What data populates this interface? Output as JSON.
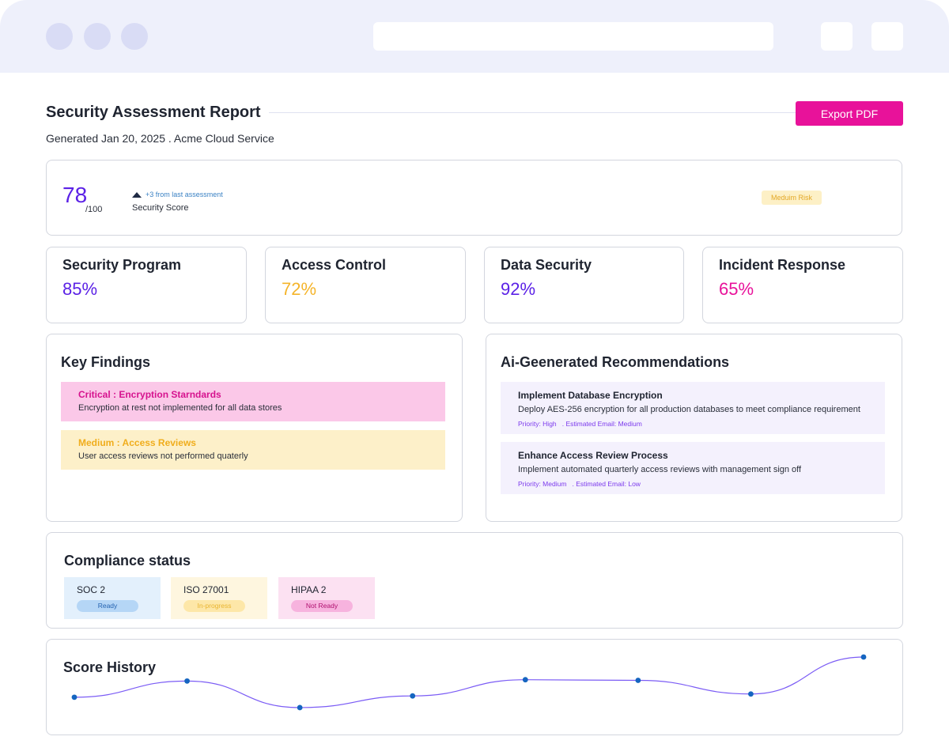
{
  "header": {
    "title": "Security Assessment Report",
    "subtitle": "Generated Jan 20, 2025 . Acme Cloud Service",
    "export_label": "Export PDF"
  },
  "score": {
    "value": "78",
    "max": "/100",
    "trend": "+3 from last assessment",
    "label": "Security Score",
    "risk": "Meduim Risk"
  },
  "metrics": [
    {
      "title": "Security Program",
      "value": "85%"
    },
    {
      "title": "Access Control",
      "value": "72%"
    },
    {
      "title": "Data Security",
      "value": "92%"
    },
    {
      "title": "Incident Response",
      "value": "65%"
    }
  ],
  "findings": {
    "title": "Key Findings",
    "items": [
      {
        "title": "Critical : Encryption Starndards",
        "desc": "Encryption at rest not implemented for all data stores"
      },
      {
        "title": "Medium : Access Reviews",
        "desc": "User access reviews not performed quaterly"
      }
    ]
  },
  "recommendations": {
    "title": "Ai-Geenerated Recommendations",
    "items": [
      {
        "title": "Implement Database Encryption",
        "desc": "Deploy AES-256 encryption for all production databases to meet compliance requirement",
        "meta": "Priority: High   . Estimated Email: Medium"
      },
      {
        "title": "Enhance Access Review Process",
        "desc": "Implement automated quarterly access reviews with management sign off",
        "meta": "Priority: Medium   . Estimated Email: Low"
      }
    ]
  },
  "compliance": {
    "title": "Compliance status",
    "items": [
      {
        "name": "SOC 2",
        "status": "Ready"
      },
      {
        "name": "ISO 27001",
        "status": "In-progress"
      },
      {
        "name": "HIPAA 2",
        "status": "Not Ready"
      }
    ]
  },
  "history": {
    "title": "Score History"
  },
  "colors": {
    "accent_pink": "#e8129a",
    "purple": "#5b21e6",
    "amber": "#f5b42a",
    "point_blue": "#1565c0",
    "line_purple": "#7b5cf5"
  },
  "chart_data": {
    "type": "line",
    "title": "Score History",
    "xlabel": "",
    "ylabel": "",
    "points": [
      {
        "y": 0.38
      },
      {
        "y": 0.63
      },
      {
        "y": 0.22
      },
      {
        "y": 0.4
      },
      {
        "y": 0.65
      },
      {
        "y": 0.64
      },
      {
        "y": 0.43
      },
      {
        "y": 1.0
      }
    ],
    "ylim": [
      0,
      1
    ]
  }
}
